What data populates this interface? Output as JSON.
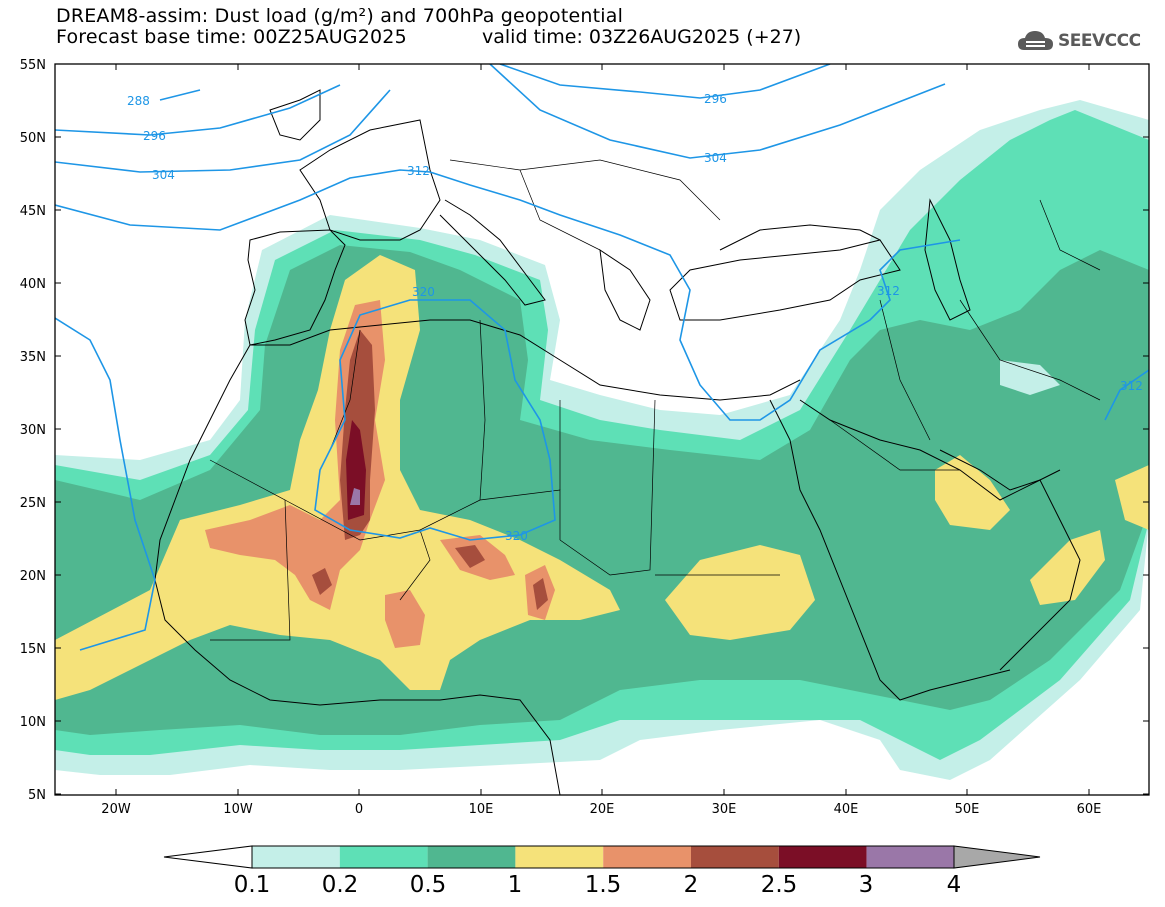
{
  "header": {
    "line1": "DREAM8-assim: Dust load (g/m²) and 700hPa geopotential",
    "line2_left": "Forecast base time: 00Z25AUG2025",
    "line2_right": "valid time: 03Z26AUG2025 (+27)"
  },
  "logo": {
    "text": "SEEVCCC",
    "icon": "cloud-icon",
    "color": "#5a5a5a"
  },
  "map": {
    "lat_labels": [
      "55N",
      "50N",
      "45N",
      "40N",
      "35N",
      "30N",
      "25N",
      "20N",
      "15N",
      "10N",
      "5N"
    ],
    "lon_labels": [
      "20W",
      "10W",
      "0",
      "10E",
      "20E",
      "30E",
      "40E",
      "50E",
      "60E"
    ],
    "contour_labels": [
      "288",
      "296",
      "304",
      "312",
      "296",
      "304",
      "320",
      "320",
      "312",
      "312"
    ],
    "contour_color": "#1e96e6",
    "region": "North Africa, Europe and Middle East"
  },
  "colorbar": {
    "ticks": [
      "0.1",
      "0.2",
      "0.5",
      "1",
      "1.5",
      "2",
      "2.5",
      "3",
      "4"
    ],
    "colors": [
      "#c4efe8",
      "#5ee0b6",
      "#50b790",
      "#f5e27a",
      "#e8926a",
      "#a64e3d",
      "#7b0e26",
      "#9a77a8",
      "#a8a8a8"
    ]
  }
}
